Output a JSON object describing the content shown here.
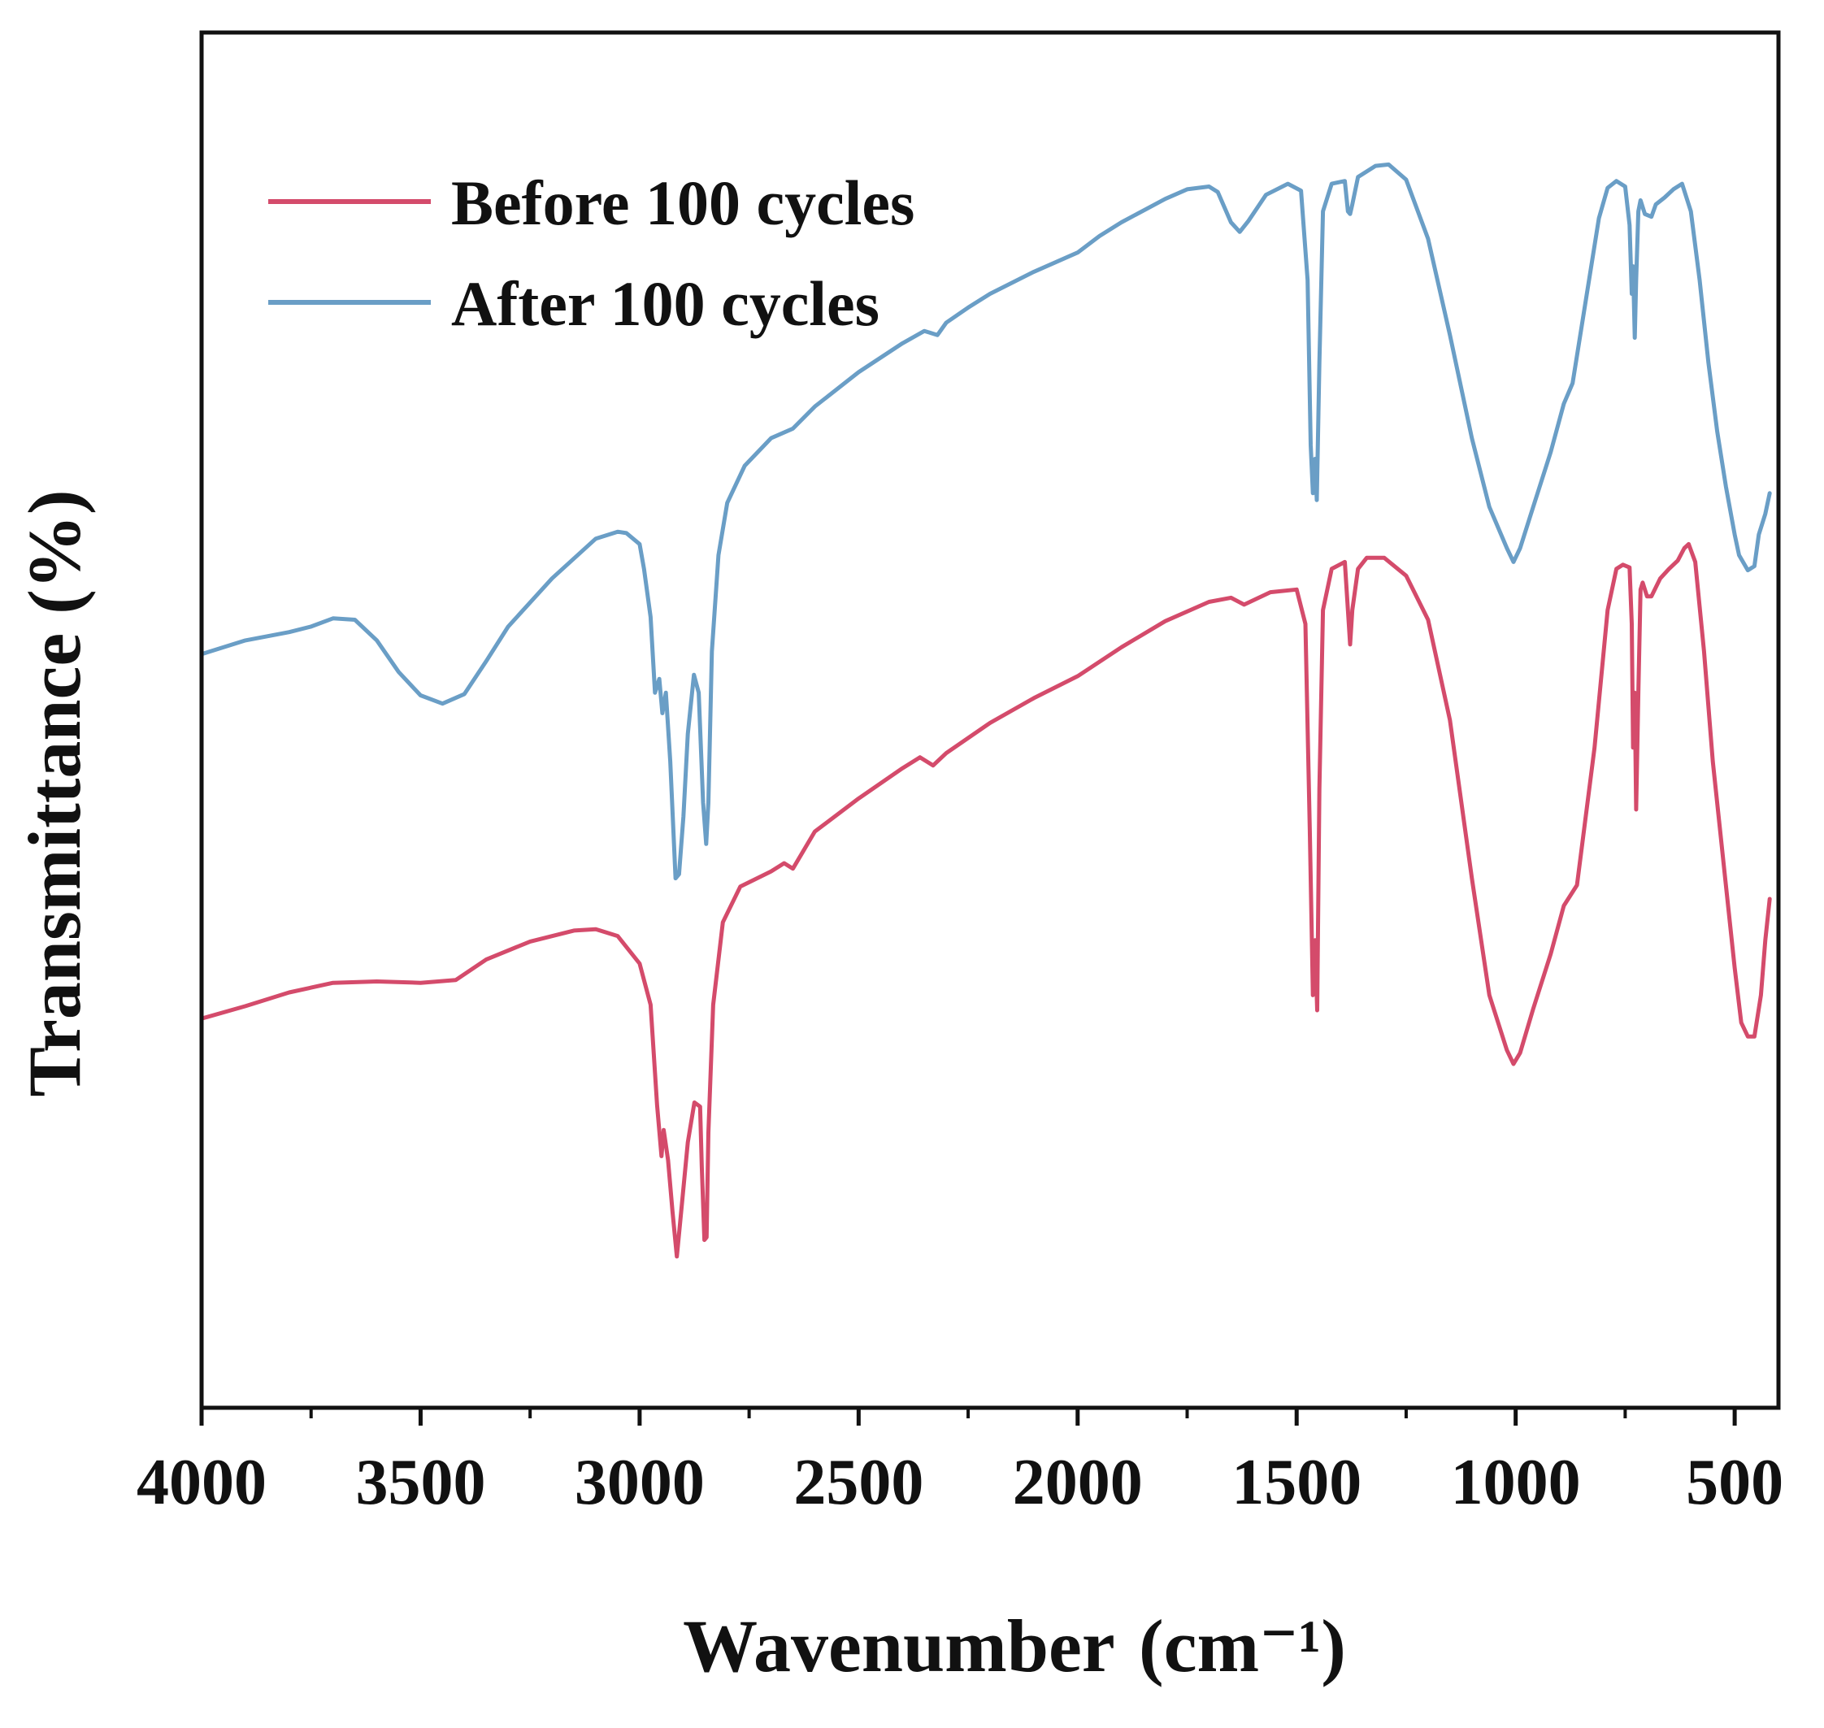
{
  "chart_data": {
    "type": "line",
    "title": "",
    "xlabel": "Wavenumber",
    "xlabel_unit": "(cm⁻¹)",
    "ylabel": "Transmittance (%)",
    "xlim": [
      4000,
      400
    ],
    "x_reversed": true,
    "ylim": [
      0,
      100
    ],
    "y_ticks_shown": false,
    "grid": false,
    "legend_position": "top-left",
    "x_ticks": [
      4000,
      3500,
      3000,
      2500,
      2000,
      1500,
      1000,
      500
    ],
    "x_tick_labels": [
      "4000",
      "3500",
      "3000",
      "2500",
      "2000",
      "1500",
      "1000",
      "500"
    ],
    "series": [
      {
        "name": "Before 100 cycles",
        "color": "#d44b6b",
        "points": [
          [
            4000,
            28.3
          ],
          [
            3900,
            29.2
          ],
          [
            3800,
            30.2
          ],
          [
            3700,
            30.9
          ],
          [
            3600,
            31.0
          ],
          [
            3500,
            30.9
          ],
          [
            3420,
            31.1
          ],
          [
            3350,
            32.6
          ],
          [
            3250,
            33.9
          ],
          [
            3150,
            34.7
          ],
          [
            3100,
            34.8
          ],
          [
            3050,
            34.3
          ],
          [
            3000,
            32.3
          ],
          [
            2975,
            29.3
          ],
          [
            2960,
            22.0
          ],
          [
            2950,
            18.3
          ],
          [
            2945,
            20.2
          ],
          [
            2935,
            18.0
          ],
          [
            2925,
            14.3
          ],
          [
            2915,
            11.0
          ],
          [
            2905,
            14.3
          ],
          [
            2890,
            19.3
          ],
          [
            2875,
            22.2
          ],
          [
            2862,
            21.9
          ],
          [
            2858,
            17.5
          ],
          [
            2852,
            12.2
          ],
          [
            2847,
            12.4
          ],
          [
            2843,
            20.0
          ],
          [
            2832,
            29.3
          ],
          [
            2810,
            35.3
          ],
          [
            2770,
            37.9
          ],
          [
            2700,
            39.0
          ],
          [
            2670,
            39.6
          ],
          [
            2650,
            39.2
          ],
          [
            2600,
            41.9
          ],
          [
            2500,
            44.3
          ],
          [
            2400,
            46.5
          ],
          [
            2360,
            47.3
          ],
          [
            2330,
            46.7
          ],
          [
            2300,
            47.6
          ],
          [
            2200,
            49.8
          ],
          [
            2100,
            51.6
          ],
          [
            2000,
            53.2
          ],
          [
            1900,
            55.3
          ],
          [
            1800,
            57.2
          ],
          [
            1700,
            58.6
          ],
          [
            1650,
            58.9
          ],
          [
            1620,
            58.4
          ],
          [
            1560,
            59.3
          ],
          [
            1500,
            59.5
          ],
          [
            1480,
            57.0
          ],
          [
            1470,
            42.0
          ],
          [
            1463,
            30.0
          ],
          [
            1458,
            34.0
          ],
          [
            1453,
            28.9
          ],
          [
            1448,
            45.0
          ],
          [
            1440,
            58.0
          ],
          [
            1420,
            61.0
          ],
          [
            1390,
            61.5
          ],
          [
            1383,
            58.0
          ],
          [
            1378,
            55.5
          ],
          [
            1373,
            58.0
          ],
          [
            1360,
            61.0
          ],
          [
            1340,
            61.8
          ],
          [
            1300,
            61.8
          ],
          [
            1250,
            60.5
          ],
          [
            1200,
            57.3
          ],
          [
            1150,
            50.0
          ],
          [
            1100,
            38.5
          ],
          [
            1060,
            30.0
          ],
          [
            1020,
            26.0
          ],
          [
            1005,
            25.0
          ],
          [
            990,
            25.8
          ],
          [
            960,
            29.0
          ],
          [
            920,
            33.0
          ],
          [
            890,
            36.5
          ],
          [
            860,
            38.0
          ],
          [
            820,
            48.0
          ],
          [
            790,
            58.0
          ],
          [
            770,
            61.0
          ],
          [
            755,
            61.3
          ],
          [
            740,
            61.1
          ],
          [
            735,
            57.0
          ],
          [
            732,
            48.0
          ],
          [
            728,
            52.0
          ],
          [
            725,
            43.5
          ],
          [
            720,
            52.0
          ],
          [
            715,
            59.5
          ],
          [
            710,
            60.0
          ],
          [
            700,
            59.0
          ],
          [
            690,
            59.0
          ],
          [
            670,
            60.3
          ],
          [
            650,
            61.0
          ],
          [
            630,
            61.6
          ],
          [
            615,
            62.5
          ],
          [
            605,
            62.8
          ],
          [
            590,
            61.5
          ],
          [
            570,
            55.0
          ],
          [
            550,
            47.0
          ],
          [
            520,
            38.0
          ],
          [
            500,
            32.0
          ],
          [
            485,
            28.0
          ],
          [
            470,
            27.0
          ],
          [
            455,
            27.0
          ],
          [
            440,
            30.0
          ],
          [
            430,
            34.0
          ],
          [
            420,
            37.0
          ]
        ]
      },
      {
        "name": "After 100 cycles",
        "color": "#6a9ec6",
        "points": [
          [
            4000,
            54.8
          ],
          [
            3900,
            55.8
          ],
          [
            3800,
            56.4
          ],
          [
            3750,
            56.8
          ],
          [
            3700,
            57.4
          ],
          [
            3650,
            57.3
          ],
          [
            3600,
            55.8
          ],
          [
            3550,
            53.5
          ],
          [
            3500,
            51.8
          ],
          [
            3450,
            51.2
          ],
          [
            3400,
            51.9
          ],
          [
            3350,
            54.3
          ],
          [
            3300,
            56.8
          ],
          [
            3200,
            60.3
          ],
          [
            3100,
            63.2
          ],
          [
            3050,
            63.7
          ],
          [
            3030,
            63.6
          ],
          [
            3000,
            62.8
          ],
          [
            2990,
            61.0
          ],
          [
            2975,
            57.5
          ],
          [
            2965,
            52.0
          ],
          [
            2955,
            53.0
          ],
          [
            2948,
            50.5
          ],
          [
            2940,
            52.0
          ],
          [
            2930,
            47.0
          ],
          [
            2918,
            38.5
          ],
          [
            2910,
            38.8
          ],
          [
            2900,
            43.0
          ],
          [
            2890,
            49.0
          ],
          [
            2876,
            53.3
          ],
          [
            2865,
            52.0
          ],
          [
            2855,
            44.0
          ],
          [
            2848,
            41.0
          ],
          [
            2843,
            44.0
          ],
          [
            2835,
            55.0
          ],
          [
            2820,
            62.0
          ],
          [
            2800,
            65.8
          ],
          [
            2760,
            68.5
          ],
          [
            2700,
            70.5
          ],
          [
            2650,
            71.2
          ],
          [
            2600,
            72.8
          ],
          [
            2500,
            75.3
          ],
          [
            2400,
            77.4
          ],
          [
            2350,
            78.3
          ],
          [
            2320,
            78.0
          ],
          [
            2300,
            78.9
          ],
          [
            2250,
            80.0
          ],
          [
            2200,
            81.0
          ],
          [
            2100,
            82.6
          ],
          [
            2000,
            84.0
          ],
          [
            1950,
            85.2
          ],
          [
            1900,
            86.2
          ],
          [
            1800,
            87.9
          ],
          [
            1750,
            88.6
          ],
          [
            1700,
            88.8
          ],
          [
            1680,
            88.4
          ],
          [
            1650,
            86.2
          ],
          [
            1630,
            85.5
          ],
          [
            1610,
            86.3
          ],
          [
            1570,
            88.2
          ],
          [
            1520,
            89.0
          ],
          [
            1490,
            88.5
          ],
          [
            1475,
            82.0
          ],
          [
            1468,
            70.0
          ],
          [
            1463,
            66.5
          ],
          [
            1458,
            69.0
          ],
          [
            1454,
            66.0
          ],
          [
            1448,
            76.0
          ],
          [
            1440,
            87.0
          ],
          [
            1420,
            89.0
          ],
          [
            1390,
            89.2
          ],
          [
            1383,
            87.0
          ],
          [
            1378,
            86.8
          ],
          [
            1373,
            87.5
          ],
          [
            1360,
            89.5
          ],
          [
            1320,
            90.3
          ],
          [
            1290,
            90.4
          ],
          [
            1250,
            89.3
          ],
          [
            1200,
            85.0
          ],
          [
            1150,
            78.0
          ],
          [
            1100,
            70.5
          ],
          [
            1060,
            65.5
          ],
          [
            1020,
            62.5
          ],
          [
            1005,
            61.5
          ],
          [
            990,
            62.5
          ],
          [
            960,
            65.5
          ],
          [
            920,
            69.5
          ],
          [
            890,
            73.0
          ],
          [
            870,
            74.5
          ],
          [
            840,
            80.5
          ],
          [
            810,
            86.5
          ],
          [
            790,
            88.7
          ],
          [
            770,
            89.2
          ],
          [
            750,
            88.8
          ],
          [
            740,
            86.0
          ],
          [
            735,
            81.0
          ],
          [
            732,
            83.0
          ],
          [
            728,
            77.8
          ],
          [
            725,
            82.0
          ],
          [
            720,
            87.0
          ],
          [
            715,
            87.8
          ],
          [
            705,
            86.8
          ],
          [
            690,
            86.6
          ],
          [
            680,
            87.5
          ],
          [
            660,
            88.0
          ],
          [
            640,
            88.6
          ],
          [
            620,
            89.0
          ],
          [
            600,
            87.0
          ],
          [
            580,
            82.0
          ],
          [
            560,
            76.0
          ],
          [
            540,
            71.0
          ],
          [
            520,
            67.0
          ],
          [
            500,
            63.5
          ],
          [
            490,
            62.0
          ],
          [
            470,
            60.9
          ],
          [
            455,
            61.2
          ],
          [
            445,
            63.5
          ],
          [
            430,
            65.0
          ],
          [
            420,
            66.5
          ]
        ]
      }
    ]
  }
}
